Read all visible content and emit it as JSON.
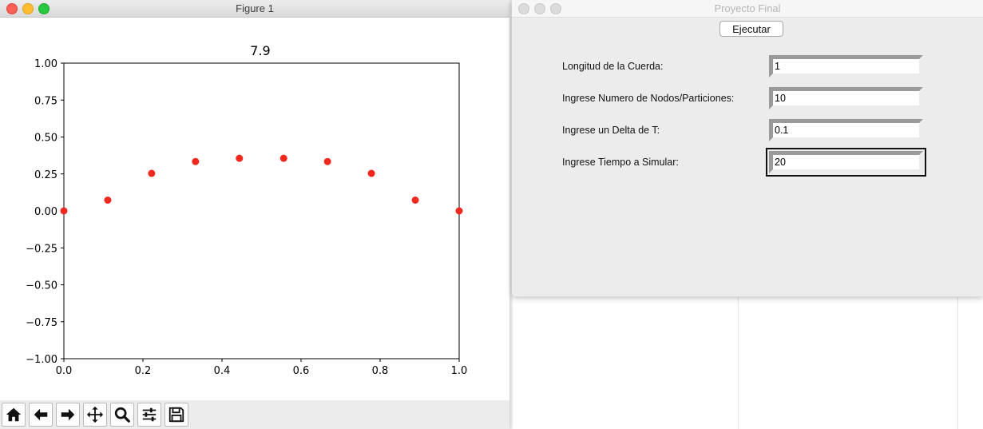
{
  "figure_window": {
    "title": "Figure 1",
    "toolbar_icons": [
      "home-icon",
      "back-arrow-icon",
      "forward-arrow-icon",
      "pan-icon",
      "zoom-icon",
      "configure-subplots-icon",
      "save-icon"
    ]
  },
  "chart_data": {
    "type": "scatter",
    "title": "7.9",
    "xlabel": "",
    "ylabel": "",
    "xlim": [
      0.0,
      1.0
    ],
    "ylim": [
      -1.0,
      1.0
    ],
    "x_ticks": [
      "0.0",
      "0.2",
      "0.4",
      "0.6",
      "0.8",
      "1.0"
    ],
    "y_ticks": [
      "1.00",
      "0.75",
      "0.50",
      "0.25",
      "0.00",
      "−0.25",
      "−0.50",
      "−0.75",
      "−1.00"
    ],
    "grid": false,
    "point_color": "#f0281e",
    "series": [
      {
        "x": [
          0.0,
          0.111,
          0.222,
          0.333,
          0.444,
          0.556,
          0.667,
          0.778,
          0.889,
          1.0
        ],
        "y": [
          0.0,
          0.073,
          0.254,
          0.334,
          0.356,
          0.356,
          0.334,
          0.254,
          0.073,
          0.0
        ]
      }
    ]
  },
  "form_window": {
    "title": "Proyecto Final",
    "run_button": "Ejecutar",
    "fields": [
      {
        "label": "Longitud de la Cuerda:",
        "value": "1"
      },
      {
        "label": "Ingrese Numero de Nodos/Particiones:",
        "value": "10"
      },
      {
        "label": "Ingrese un Delta de T:",
        "value": "0.1"
      },
      {
        "label": "Ingrese Tiempo a Simular:",
        "value": "20"
      }
    ]
  }
}
